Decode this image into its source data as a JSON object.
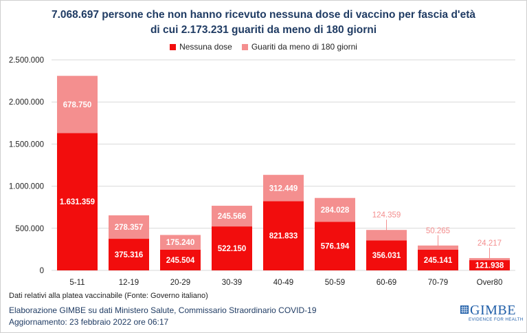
{
  "title_line1": "7.068.697 persone che non hanno ricevuto nessuna dose di vaccino per fascia d'età",
  "title_line2": "di cui 2.173.231 guariti da meno di 180 giorni",
  "note": "Dati relativi alla platea vaccinabile (Fonte: Governo italiano)",
  "credit_line1": "Elaborazione GIMBE su dati Ministero Salute, Commissario Straordinario COVID-19",
  "credit_line2": "Aggiornamento: 23 febbraio 2022 ore 06:17",
  "logo": {
    "name": "GIMBE",
    "tagline": "EVIDENCE FOR HEALTH"
  },
  "colors": {
    "nessuna_dose": "#f20d0d",
    "guariti": "#f48f8f",
    "grid": "#d9d9d9",
    "title": "#1f3b63"
  },
  "chart_data": {
    "type": "bar",
    "stacked": true,
    "categories": [
      "5-11",
      "12-19",
      "20-29",
      "30-39",
      "40-49",
      "50-59",
      "60-69",
      "70-79",
      "Over80"
    ],
    "series": [
      {
        "name": "Nessuna dose",
        "values": [
          1631359,
          375316,
          245504,
          522150,
          821833,
          576194,
          356031,
          245141,
          121938
        ],
        "labels": [
          "1.631.359",
          "375.316",
          "245.504",
          "522.150",
          "821.833",
          "576.194",
          "356.031",
          "245.141",
          "121.938"
        ]
      },
      {
        "name": "Guariti da meno di 180 giorni",
        "values": [
          678750,
          278357,
          175240,
          245566,
          312449,
          284028,
          124359,
          50265,
          24217
        ],
        "labels": [
          "678.750",
          "278.357",
          "175.240",
          "245.566",
          "312.449",
          "284.028",
          "124.359",
          "50.265",
          "24.217"
        ]
      }
    ],
    "ylim": [
      0,
      2500000
    ],
    "yticks": [
      0,
      500000,
      1000000,
      1500000,
      2000000,
      2500000
    ],
    "ytick_labels": [
      "0",
      "500.000",
      "1.000.000",
      "1.500.000",
      "2.000.000",
      "2.500.000"
    ],
    "legend_position": "top-center",
    "grid": true
  }
}
